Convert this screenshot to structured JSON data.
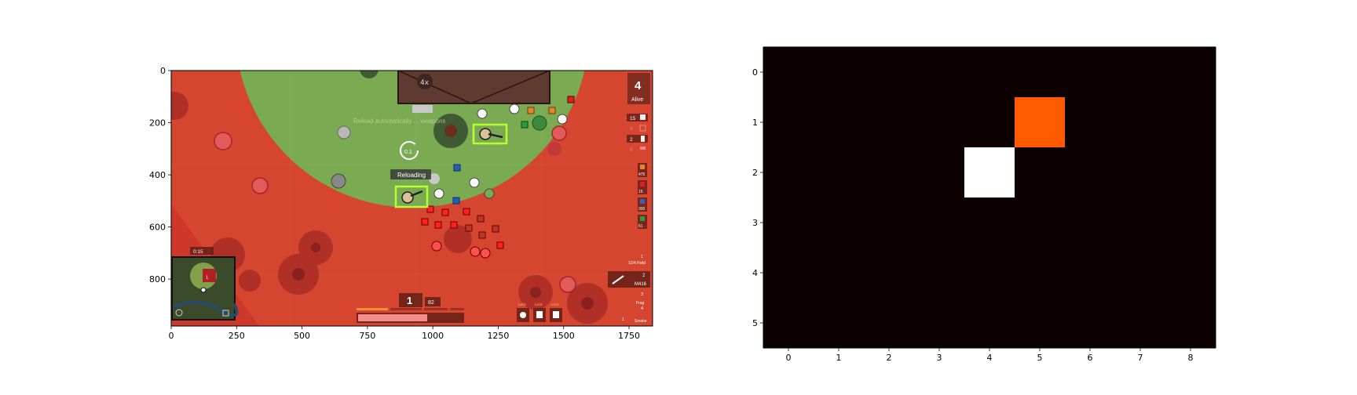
{
  "left_panel": {
    "x_ticks": [
      "0",
      "250",
      "500",
      "750",
      "1000",
      "1250",
      "1500",
      "1750"
    ],
    "y_ticks": [
      "0",
      "200",
      "400",
      "600",
      "800"
    ],
    "game": {
      "zoom_label": "4x",
      "players_alive": "4",
      "alive_label": "Alive",
      "reload_status": "Reloading",
      "faded_notice": "Reload automatically ... weapons",
      "reload_timer": "0.1",
      "gas_timer": "0:15",
      "ammo_clip": "1",
      "ammo_reserve": "82",
      "inventory": [
        {
          "count": "15",
          "icon": "bandage-icon"
        },
        {
          "count": "0",
          "icon": "medkit-icon"
        },
        {
          "count": "2",
          "icon": "soda-icon"
        },
        {
          "count": "0",
          "icon": "pill-icon"
        }
      ],
      "ammo_counts": [
        "475",
        "15",
        "300",
        "61"
      ],
      "weapons": [
        {
          "slot": "1",
          "name": "Fist"
        },
        {
          "slot": "2",
          "name": "M416"
        },
        {
          "slot": "3",
          "name": ""
        },
        {
          "slot": "4",
          "name": "Frag"
        },
        {
          "slot": "1",
          "name": "Smoke"
        }
      ],
      "weapon_primary_label": "1",
      "weapon_primary_name": "1/24 Field",
      "equipment_levels": [
        "Lvl.0",
        "Lvl.0",
        "Lvl.0"
      ]
    }
  },
  "right_panel": {
    "chart_data": {
      "type": "heatmap",
      "rows": 6,
      "cols": 9,
      "x_ticks": [
        "0",
        "1",
        "2",
        "3",
        "4",
        "5",
        "6",
        "7",
        "8"
      ],
      "y_ticks": [
        "0",
        "1",
        "2",
        "3",
        "4",
        "5"
      ],
      "cells": [
        {
          "row": 1,
          "col": 5,
          "value": 0.6,
          "color": "#ff5a00"
        },
        {
          "row": 2,
          "col": 4,
          "value": 1.0,
          "color": "#ffffff"
        }
      ],
      "background_color": "#0d0000"
    }
  }
}
